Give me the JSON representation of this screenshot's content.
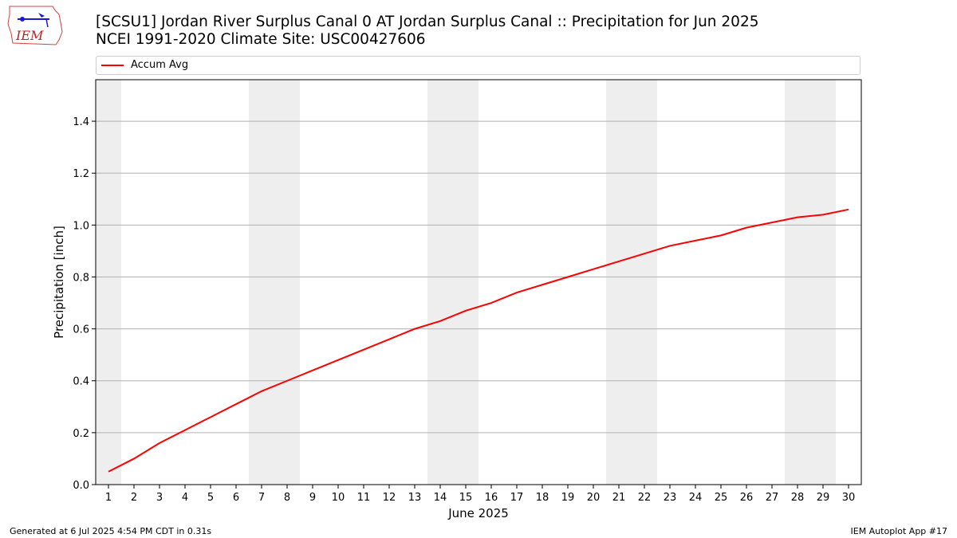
{
  "header": {
    "title_line1": "[SCSU1] Jordan River Surplus Canal 0 AT Jordan Surplus Canal :: Precipitation for Jun 2025",
    "title_line2": "NCEI 1991-2020 Climate Site: USC00427606"
  },
  "logo": {
    "text": "IEM"
  },
  "legend": {
    "items": [
      {
        "label": "Accum Avg",
        "color": "#ff0000"
      }
    ]
  },
  "footer": {
    "left": "Generated at 6 Jul 2025 4:54 PM CDT in 0.31s",
    "right": "IEM Autoplot App #17"
  },
  "colors": {
    "series": "#ff0000",
    "weekend_band": "#eeeeee",
    "grid": "#b0b0b0"
  },
  "chart_data": {
    "type": "line",
    "title": "[SCSU1] Jordan River Surplus Canal 0 AT Jordan Surplus Canal :: Precipitation for Jun 2025",
    "subtitle": "NCEI 1991-2020 Climate Site: USC00427606",
    "xlabel": "June 2025",
    "ylabel": "Precipitation [inch]",
    "x": [
      1,
      2,
      3,
      4,
      5,
      6,
      7,
      8,
      9,
      10,
      11,
      12,
      13,
      14,
      15,
      16,
      17,
      18,
      19,
      20,
      21,
      22,
      23,
      24,
      25,
      26,
      27,
      28,
      29,
      30
    ],
    "xlim": [
      0.5,
      30.5
    ],
    "ylim": [
      0,
      1.56
    ],
    "yticks": [
      0.0,
      0.2,
      0.4,
      0.6,
      0.8,
      1.0,
      1.2,
      1.4
    ],
    "ytick_labels": [
      "0.0",
      "0.2",
      "0.4",
      "0.6",
      "0.8",
      "1.0",
      "1.2",
      "1.4"
    ],
    "grid": "y",
    "weekend_days": [
      1,
      7,
      8,
      14,
      15,
      21,
      22,
      28,
      29
    ],
    "series": [
      {
        "name": "Accum Avg",
        "color": "#ff0000",
        "values": [
          0.05,
          0.1,
          0.16,
          0.21,
          0.26,
          0.31,
          0.36,
          0.4,
          0.44,
          0.48,
          0.52,
          0.56,
          0.6,
          0.63,
          0.67,
          0.7,
          0.74,
          0.77,
          0.8,
          0.83,
          0.86,
          0.89,
          0.92,
          0.94,
          0.96,
          0.99,
          1.01,
          1.03,
          1.04,
          1.06
        ]
      }
    ],
    "legend_position": "top"
  }
}
